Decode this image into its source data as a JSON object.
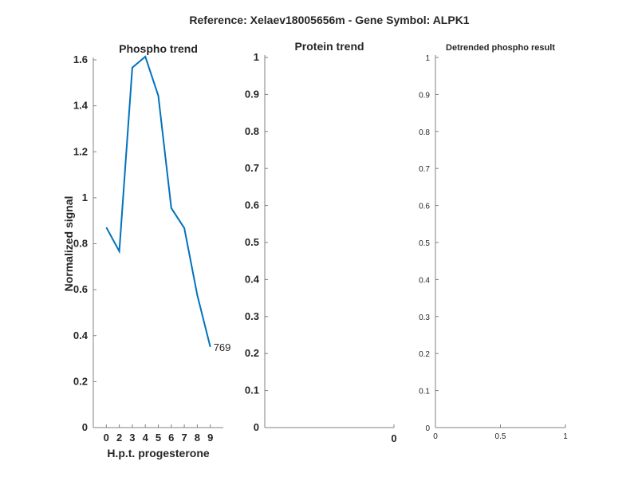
{
  "figure_title": "Reference:  Xelaev18005656m - Gene Symbol:  ALPK1",
  "chart_data": [
    {
      "type": "line",
      "title": "Phospho trend",
      "xlabel": "H.p.t. progesterone",
      "ylabel": "Normalized signal",
      "categories": [
        "0",
        "2",
        "3",
        "4",
        "5",
        "6",
        "7",
        "8",
        "9"
      ],
      "series": [
        {
          "values": [
            0.871,
            0.767,
            1.566,
            1.614,
            1.444,
            0.955,
            0.868,
            0.576,
            0.351
          ],
          "color": "#0072BD"
        }
      ],
      "end_label": "769",
      "ylim": [
        0,
        1.6
      ],
      "yticks": [
        "0",
        "0.2",
        "0.4",
        "0.6",
        "0.8",
        "1",
        "1.2",
        "1.4",
        "1.6"
      ],
      "grid": false
    },
    {
      "type": "line",
      "title": "Protein trend",
      "xlabel": "",
      "ylabel": "",
      "series": [],
      "ylim": [
        0,
        1
      ],
      "yticks": [
        "0",
        "0.1",
        "0.2",
        "0.3",
        "0.4",
        "0.5",
        "0.6",
        "0.7",
        "0.8",
        "0.9",
        "1"
      ],
      "xticks": [
        "0"
      ],
      "grid": false
    },
    {
      "type": "line",
      "title": "Detrended phospho result",
      "xlabel": "",
      "ylabel": "",
      "series": [],
      "ylim": [
        0,
        1
      ],
      "xlim": [
        0,
        1
      ],
      "yticks": [
        "0",
        "0.1",
        "0.2",
        "0.3",
        "0.4",
        "0.5",
        "0.6",
        "0.7",
        "0.8",
        "0.9",
        "1"
      ],
      "xticks": [
        "0",
        "0.5",
        "1"
      ],
      "grid": false
    }
  ]
}
